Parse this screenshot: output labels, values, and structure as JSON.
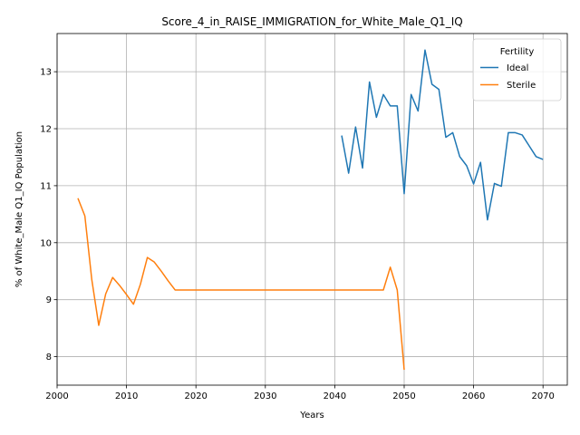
{
  "chart_data": {
    "type": "line",
    "title": "Score_4_in_RAISE_IMMIGRATION_for_White_Male_Q1_IQ",
    "xlabel": "Years",
    "ylabel": "% of White_Male Q1_IQ Population",
    "xlim": [
      2000,
      2073.5
    ],
    "ylim": [
      7.5,
      13.67
    ],
    "xticks": [
      2000,
      2010,
      2020,
      2030,
      2040,
      2050,
      2060,
      2070
    ],
    "yticks": [
      8,
      9,
      10,
      11,
      12,
      13
    ],
    "grid": true,
    "legend": {
      "title": "Fertility",
      "position": "top-right"
    },
    "series": [
      {
        "name": "Ideal",
        "color": "#1f77b4",
        "x": [
          2041,
          2042,
          2043,
          2044,
          2045,
          2046,
          2047,
          2048,
          2049,
          2050,
          2051,
          2052,
          2053,
          2054,
          2055,
          2056,
          2057,
          2058,
          2059,
          2060,
          2061,
          2062,
          2063,
          2064,
          2065,
          2066,
          2067,
          2068,
          2069,
          2070
        ],
        "y": [
          11.88,
          11.22,
          12.03,
          11.31,
          12.82,
          12.2,
          12.6,
          12.4,
          12.4,
          10.86,
          12.6,
          12.31,
          13.38,
          12.78,
          12.69,
          11.85,
          11.93,
          11.51,
          11.35,
          11.03,
          11.41,
          10.4,
          11.04,
          10.99,
          11.93,
          11.93,
          11.89,
          11.7,
          11.51,
          11.46
        ]
      },
      {
        "name": "Sterile",
        "color": "#ff7f0e",
        "x": [
          2003,
          2004,
          2005,
          2006,
          2007,
          2008,
          2009,
          2010,
          2011,
          2012,
          2013,
          2014,
          2015,
          2016,
          2017,
          2020,
          2030,
          2040,
          2045,
          2047,
          2048,
          2049,
          2050
        ],
        "y": [
          10.78,
          10.47,
          9.35,
          8.55,
          9.1,
          9.39,
          9.25,
          9.09,
          8.92,
          9.27,
          9.74,
          9.66,
          9.5,
          9.33,
          9.17,
          9.17,
          9.17,
          9.17,
          9.17,
          9.17,
          9.57,
          9.17,
          7.77
        ]
      }
    ]
  }
}
